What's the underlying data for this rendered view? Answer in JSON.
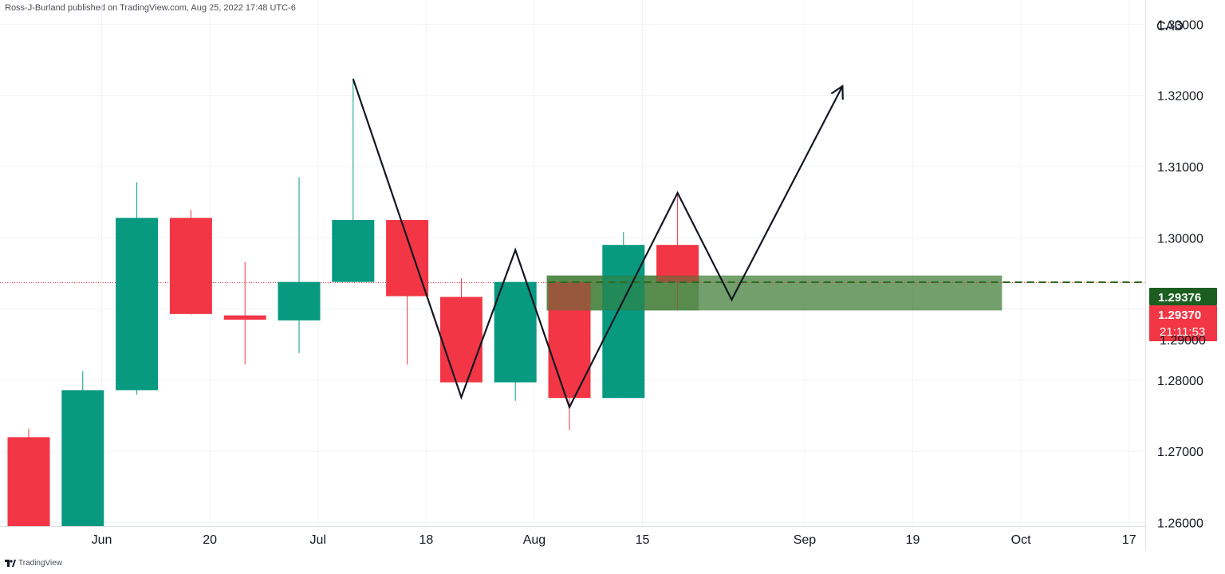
{
  "header": {
    "publisher": "Ross-J-Burland published on TradingView.com, Aug 25, 2022 17:48 UTC-6"
  },
  "footer": {
    "brand": "TradingView",
    "brand_icon": "tradingview-logo-icon"
  },
  "colors": {
    "up": "#089981",
    "down": "#f23645",
    "grid": "#f0f3fa",
    "zone": "#3c7a32",
    "line": "#131722",
    "price_line_up": "#2e6b22",
    "badge_up": "#1b5e20",
    "badge_down": "#f23645"
  },
  "chart_data": {
    "type": "candlestick",
    "currency": "CAD",
    "timeframe": "weekly",
    "ylim": [
      1.2595,
      1.3325
    ],
    "y_ticks": [
      "1.33000",
      "1.32000",
      "1.31000",
      "1.30000",
      "1.29000",
      "1.28000",
      "1.27000",
      "1.26000"
    ],
    "x_ticks": [
      {
        "label": "Jun",
        "week": 1.35
      },
      {
        "label": "20",
        "week": 3.35
      },
      {
        "label": "Jul",
        "week": 5.35
      },
      {
        "label": "18",
        "week": 7.35
      },
      {
        "label": "Aug",
        "week": 9.35
      },
      {
        "label": "15",
        "week": 11.35
      },
      {
        "label": "Sep",
        "week": 14.35
      },
      {
        "label": "19",
        "week": 16.35
      },
      {
        "label": "Oct",
        "week": 18.35
      },
      {
        "label": "17",
        "week": 20.35
      }
    ],
    "candles": [
      {
        "week": 0,
        "open": 1.272,
        "high": 1.2732,
        "low": 1.2595,
        "close": 1.2595
      },
      {
        "week": 1,
        "open": 1.2595,
        "high": 1.2813,
        "low": 1.2595,
        "close": 1.2786
      },
      {
        "week": 2,
        "open": 1.2786,
        "high": 1.3078,
        "low": 1.278,
        "close": 1.3028
      },
      {
        "week": 3,
        "open": 1.3028,
        "high": 1.3039,
        "low": 1.2892,
        "close": 1.2893
      },
      {
        "week": 4,
        "open": 1.2891,
        "high": 1.2966,
        "low": 1.2822,
        "close": 1.2885
      },
      {
        "week": 5,
        "open": 1.2884,
        "high": 1.3085,
        "low": 1.2838,
        "close": 1.2938
      },
      {
        "week": 6,
        "open": 1.2938,
        "high": 1.3224,
        "low": 1.2938,
        "close": 1.3025
      },
      {
        "week": 7,
        "open": 1.3025,
        "high": 1.3025,
        "low": 1.2822,
        "close": 1.2918
      },
      {
        "week": 8,
        "open": 1.2917,
        "high": 1.2943,
        "low": 1.2797,
        "close": 1.2797
      },
      {
        "week": 9,
        "open": 1.2797,
        "high": 1.2938,
        "low": 1.2771,
        "close": 1.2938
      },
      {
        "week": 10,
        "open": 1.2938,
        "high": 1.2938,
        "low": 1.273,
        "close": 1.2775
      },
      {
        "week": 11,
        "open": 1.2775,
        "high": 1.3008,
        "low": 1.2775,
        "close": 1.299
      },
      {
        "week": 12,
        "open": 1.299,
        "high": 1.3061,
        "low": 1.2898,
        "close": 1.2937
      }
    ],
    "pattern_path": [
      {
        "week": 6,
        "price": 1.3223
      },
      {
        "week": 8,
        "price": 1.2776
      },
      {
        "week": 9,
        "price": 1.2983
      },
      {
        "week": 10,
        "price": 1.2762
      },
      {
        "week": 12,
        "price": 1.3063
      },
      {
        "week": 13,
        "price": 1.2913
      },
      {
        "week": 15.05,
        "price": 1.3213
      }
    ],
    "zone": {
      "week_start": 10,
      "week_end": 18,
      "price_top": 1.2947,
      "price_bottom": 1.2898
    },
    "price_line": 1.29376,
    "last_price_dotted": 1.2937,
    "badges": {
      "price_up": "1.29376",
      "price_down": "1.29370",
      "countdown": "21:11:53",
      "hidden_tick": "1.29000"
    }
  }
}
